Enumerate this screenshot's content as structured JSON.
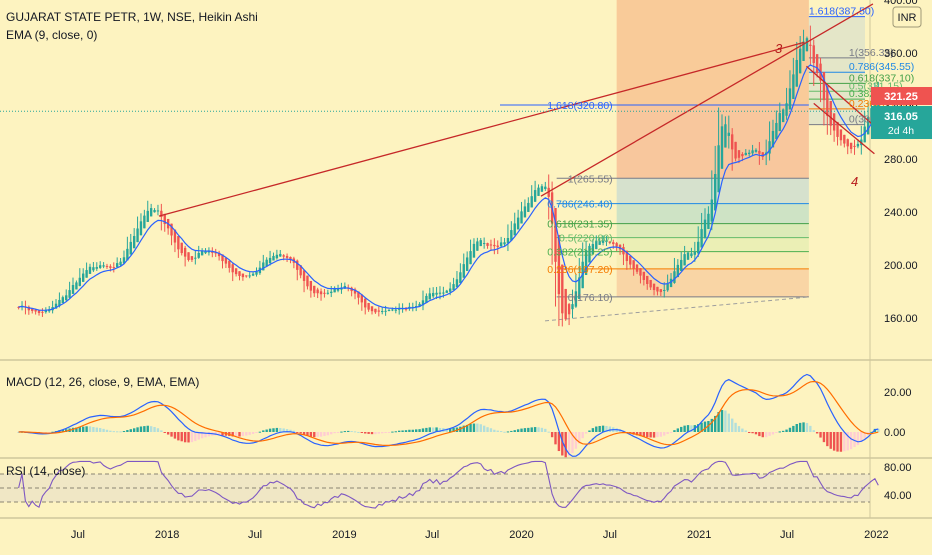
{
  "header": {
    "title": "GUJARAT STATE PETR, 1W, NSE, Heikin Ashi",
    "ema_label": "EMA (9, close, 0)",
    "currency": "INR"
  },
  "price_badges": {
    "upper": "321.25",
    "current": "316.05",
    "countdown": "2d 4h",
    "upper_color": "#ef5350",
    "current_color": "#26a69a"
  },
  "annotations": {
    "wave3": "3",
    "wave4": "4"
  },
  "colors": {
    "background": "#fdf3c0",
    "up": "#26a69a",
    "down": "#ef5350",
    "ema": "#2962ff",
    "trend": "#c62828",
    "macd_line": "#2962ff",
    "signal_line": "#ff6d00",
    "rsi": "#7e57c2"
  },
  "x_axis": {
    "ticks": [
      "Jul",
      "2018",
      "Jul",
      "2019",
      "Jul",
      "2020",
      "Jul",
      "2021",
      "Jul",
      "2022"
    ]
  },
  "chart_data": [
    {
      "type": "candlestick",
      "title": "GUJARAT STATE PETR, 1W, NSE, Heikin Ashi",
      "y_ticks": [
        "400.00",
        "360.00",
        "320.00",
        "280.00",
        "240.00",
        "200.00",
        "160.00"
      ],
      "ylim": [
        130,
        400
      ],
      "anchors": [
        [
          "2017-03-01",
          168
        ],
        [
          "2017-06-01",
          178
        ],
        [
          "2017-09-01",
          200
        ],
        [
          "2017-12-15",
          237
        ],
        [
          "2018-03-01",
          210
        ],
        [
          "2018-06-01",
          195
        ],
        [
          "2018-09-01",
          198
        ],
        [
          "2018-12-01",
          182
        ],
        [
          "2019-03-01",
          173
        ],
        [
          "2019-05-15",
          160
        ],
        [
          "2019-07-15",
          182
        ],
        [
          "2019-10-15",
          215
        ],
        [
          "2020-01-15",
          250
        ],
        [
          "2020-02-15",
          252
        ],
        [
          "2020-03-25",
          158
        ],
        [
          "2020-05-15",
          212
        ],
        [
          "2020-08-15",
          205
        ],
        [
          "2020-10-15",
          183
        ],
        [
          "2020-12-15",
          210
        ],
        [
          "2021-01-15",
          242
        ],
        [
          "2021-02-15",
          305
        ],
        [
          "2021-03-15",
          268
        ],
        [
          "2021-05-01",
          280
        ],
        [
          "2021-06-15",
          325
        ],
        [
          "2021-08-05",
          368
        ],
        [
          "2021-08-25",
          345
        ],
        [
          "2021-10-01",
          315
        ],
        [
          "2021-11-20",
          290
        ],
        [
          "2022-01-05",
          316
        ]
      ],
      "last_price": 316.05,
      "fib_extension": [
        {
          "label": "1.618(387.50)",
          "value": 387.5
        },
        {
          "label": "1(356.35)",
          "value": 356.35
        },
        {
          "label": "0.786(345.55)",
          "value": 345.55
        },
        {
          "label": "0.618(337.10)",
          "value": 337.1
        },
        {
          "label": "0.5(331.15)",
          "value": 331.15
        },
        {
          "label": "0.382(325.25)",
          "value": 325.25
        },
        {
          "label": "0.236(317.85)",
          "value": 317.85
        },
        {
          "label": "0(306.00)",
          "value": 306.0
        }
      ],
      "fib_retracement": [
        {
          "label": "1.618(320.80)",
          "value": 320.8
        },
        {
          "label": "1(265.55)",
          "value": 265.55
        },
        {
          "label": "0.786(246.40)",
          "value": 246.4
        },
        {
          "label": "0.618(231.35)",
          "value": 231.35
        },
        {
          "label": "0.5(220.80)",
          "value": 220.8
        },
        {
          "label": "0.382(210.25)",
          "value": 210.25
        },
        {
          "label": "0.236(197.20)",
          "value": 197.2
        },
        {
          "label": "0(176.10)",
          "value": 176.1
        }
      ]
    },
    {
      "type": "line",
      "title": "MACD (12, 26, close, 9, EMA, EMA)",
      "y_ticks": [
        "20.00",
        "0.00"
      ],
      "ylim": [
        -12,
        35
      ]
    },
    {
      "type": "line",
      "title": "RSI (14, close)",
      "y_ticks": [
        "80.00",
        "40.00"
      ],
      "ylim": [
        10,
        90
      ],
      "bands": [
        70,
        50,
        30
      ]
    }
  ]
}
